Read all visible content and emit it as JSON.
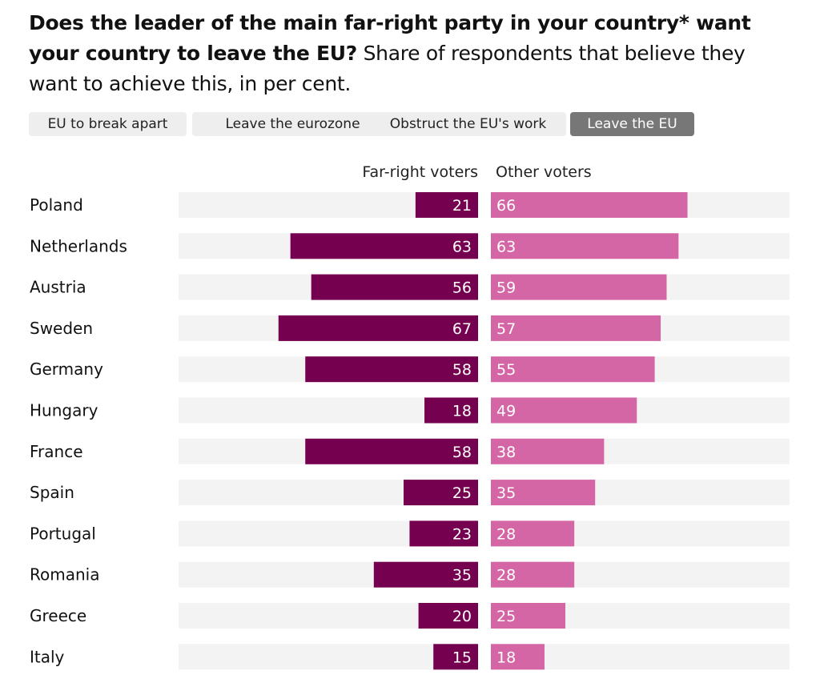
{
  "title": {
    "bold": "Does the leader of the main far-right party in your country* want your country to leave the EU?",
    "rest": " Share of respondents that believe they want to achieve this, in per cent."
  },
  "tabs": [
    {
      "label": "EU to break apart",
      "active": false
    },
    {
      "label": "Leave the eurozone",
      "active": false
    },
    {
      "label": "Obstruct the EU's work",
      "active": false
    },
    {
      "label": "Leave the EU",
      "active": true
    }
  ],
  "colors": {
    "far_right": "#760050",
    "other": "#d566a5",
    "track": "#f3f3f3",
    "tab_active": "#777777",
    "tab_inactive": "#eeeeee"
  },
  "chart_data": {
    "type": "bar",
    "orientation": "horizontal-diverging",
    "categories": [
      "Poland",
      "Netherlands",
      "Austria",
      "Sweden",
      "Germany",
      "Hungary",
      "France",
      "Spain",
      "Portugal",
      "Romania",
      "Greece",
      "Italy"
    ],
    "series": [
      {
        "name": "Far-right voters",
        "values": [
          21,
          63,
          56,
          67,
          58,
          18,
          58,
          25,
          23,
          35,
          20,
          15
        ]
      },
      {
        "name": "Other voters",
        "values": [
          66,
          63,
          59,
          57,
          55,
          49,
          38,
          35,
          28,
          28,
          25,
          18
        ]
      }
    ],
    "xlim": [
      0,
      100
    ],
    "unit": "per cent"
  }
}
